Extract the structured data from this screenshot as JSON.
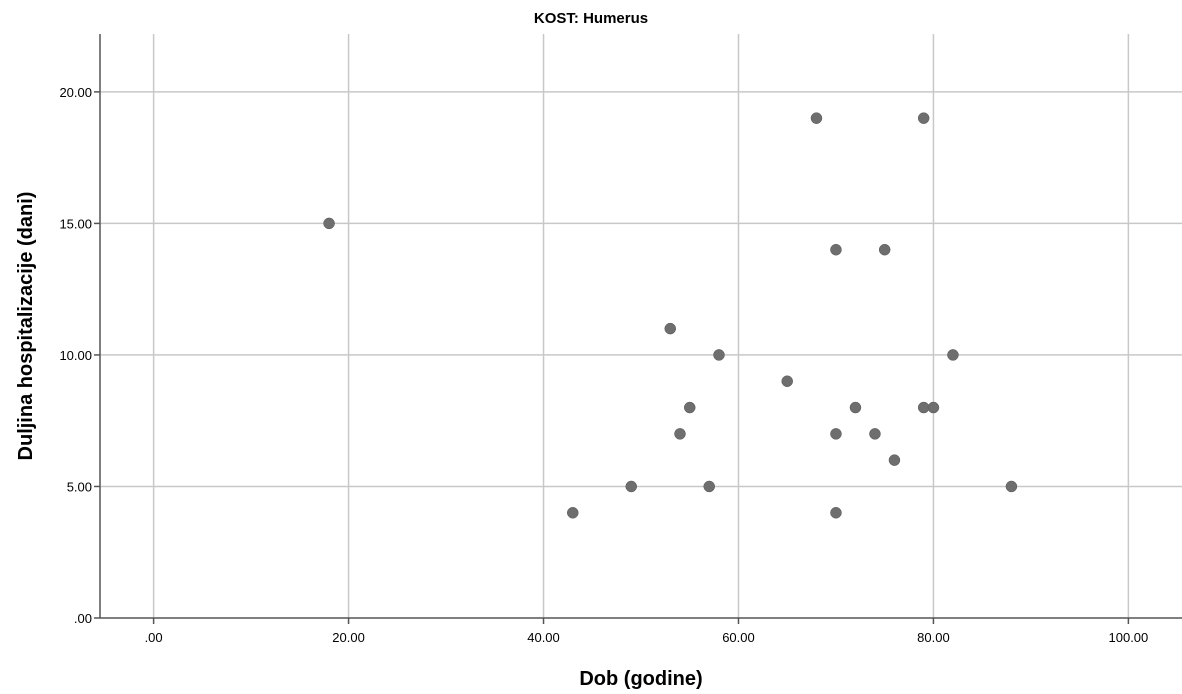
{
  "chart_data": {
    "type": "scatter",
    "title": "KOST: Humerus",
    "xlabel": "Dob (godine)",
    "ylabel": "Duljina hospitalizacije (dani)",
    "xlim": [
      -5.5,
      105.5
    ],
    "ylim": [
      0,
      22.2
    ],
    "xticks": [
      0,
      20,
      40,
      60,
      80,
      100
    ],
    "xtick_labels": [
      ".00",
      "20.00",
      "40.00",
      "60.00",
      "80.00",
      "100.00"
    ],
    "yticks": [
      0,
      5,
      10,
      15,
      20
    ],
    "ytick_labels": [
      ".00",
      "5.00",
      "10.00",
      "15.00",
      "20.00"
    ],
    "grid": true,
    "marker_color": "#6e6e6e",
    "points": [
      {
        "x": 18,
        "y": 15
      },
      {
        "x": 43,
        "y": 4
      },
      {
        "x": 49,
        "y": 5
      },
      {
        "x": 53,
        "y": 11
      },
      {
        "x": 54,
        "y": 7
      },
      {
        "x": 55,
        "y": 8
      },
      {
        "x": 57,
        "y": 5
      },
      {
        "x": 58,
        "y": 10
      },
      {
        "x": 65,
        "y": 9
      },
      {
        "x": 68,
        "y": 19
      },
      {
        "x": 70,
        "y": 14
      },
      {
        "x": 70,
        "y": 7
      },
      {
        "x": 70,
        "y": 4
      },
      {
        "x": 72,
        "y": 8
      },
      {
        "x": 74,
        "y": 7
      },
      {
        "x": 75,
        "y": 14
      },
      {
        "x": 76,
        "y": 6
      },
      {
        "x": 79,
        "y": 19
      },
      {
        "x": 79,
        "y": 8
      },
      {
        "x": 80,
        "y": 8
      },
      {
        "x": 82,
        "y": 10
      },
      {
        "x": 88,
        "y": 5
      }
    ]
  }
}
